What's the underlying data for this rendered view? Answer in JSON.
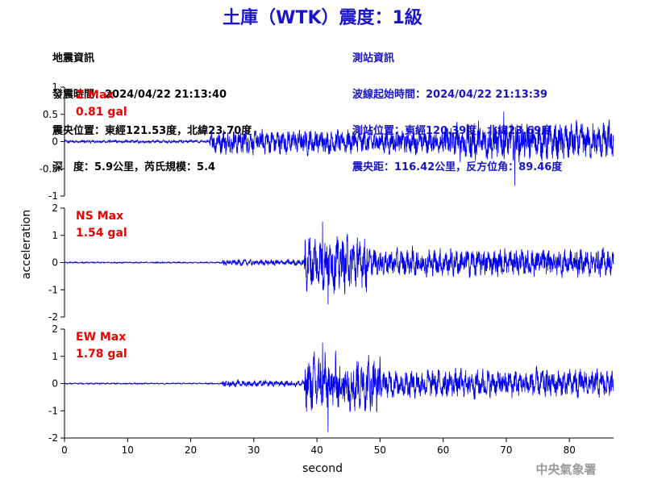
{
  "title": "土庫（WTK）震度：1級",
  "quake_info": [
    "地震資訊",
    "發震時間：2024/04/22 21:13:40",
    "震央位置：東經121.53度，北緯23.70度",
    "深　度：5.9公里，芮氏規模：5.4"
  ],
  "station_info": [
    "測站資訊",
    "波線起始時間：2024/04/22 21:13:39",
    "測站位置：東經120.39度，北緯23.69度",
    "震央距：116.42公里，反方位角：89.46度"
  ],
  "agency": "中央氣象署",
  "colors": {
    "trace": "#0000ee",
    "max_label": "#ee0000",
    "title": "#1a14c8"
  },
  "chart_data": {
    "type": "line",
    "xlabel": "second",
    "ylabel": "acceleration",
    "xlim": [
      0,
      87
    ],
    "x_ticks": [
      "0",
      "10",
      "20",
      "30",
      "40",
      "50",
      "60",
      "70",
      "80"
    ],
    "panels": [
      {
        "name": "Z",
        "max_title": "Z Max",
        "max_value": "0.81 gal",
        "ylim": [
          -1,
          1
        ],
        "y_ticks": [
          "1",
          "0.5",
          "0",
          "-0.5",
          "-1"
        ],
        "y_tick_values": [
          1,
          0.5,
          0,
          -0.5,
          -1
        ],
        "segments": [
          {
            "from": 0,
            "to": 23,
            "amp": 0.025
          },
          {
            "from": 23,
            "to": 40,
            "amp": 0.2
          },
          {
            "from": 40,
            "to": 60,
            "amp": 0.2
          },
          {
            "from": 60,
            "to": 87,
            "amp": 0.3
          }
        ],
        "peak_max": 0.55,
        "peak_min": -0.81
      },
      {
        "name": "NS",
        "max_title": "NS Max",
        "max_value": "1.54 gal",
        "ylim": [
          -2,
          2
        ],
        "y_ticks": [
          "2",
          "1",
          "0",
          "-1",
          "-2"
        ],
        "y_tick_values": [
          2,
          1,
          0,
          -1,
          -2
        ],
        "segments": [
          {
            "from": 0,
            "to": 25,
            "amp": 0.02
          },
          {
            "from": 25,
            "to": 38,
            "amp": 0.1
          },
          {
            "from": 38,
            "to": 48,
            "amp": 0.9
          },
          {
            "from": 48,
            "to": 87,
            "amp": 0.45
          }
        ],
        "peak_max": 1.5,
        "peak_min": -1.54
      },
      {
        "name": "EW",
        "max_title": "EW Max",
        "max_value": "1.78 gal",
        "ylim": [
          -2,
          2
        ],
        "y_ticks": [
          "2",
          "1",
          "0",
          "-1",
          "-2"
        ],
        "y_tick_values": [
          2,
          1,
          0,
          -1,
          -2
        ],
        "segments": [
          {
            "from": 0,
            "to": 25,
            "amp": 0.02
          },
          {
            "from": 25,
            "to": 38,
            "amp": 0.1
          },
          {
            "from": 38,
            "to": 50,
            "amp": 0.9
          },
          {
            "from": 50,
            "to": 87,
            "amp": 0.45
          }
        ],
        "peak_max": 1.5,
        "peak_min": -1.78
      }
    ]
  }
}
